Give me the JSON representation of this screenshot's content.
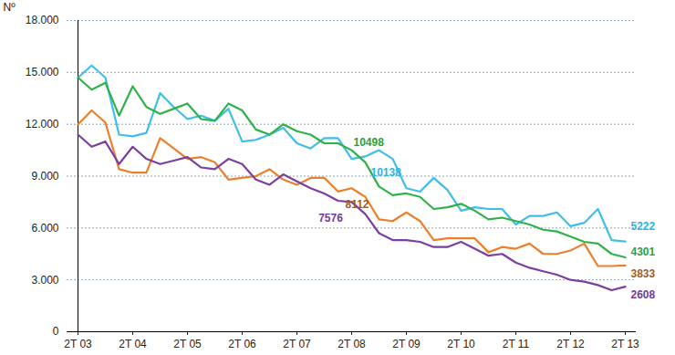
{
  "chart_data": {
    "type": "line",
    "ylabel": "Nº",
    "categories": [
      "2T 03",
      null,
      null,
      null,
      "2T 04",
      null,
      null,
      null,
      "2T 05",
      null,
      null,
      null,
      "2T 06",
      null,
      null,
      null,
      "2T 07",
      null,
      null,
      null,
      "2T 08",
      null,
      null,
      null,
      "2T 09",
      null,
      null,
      null,
      "2T 10",
      null,
      null,
      null,
      "2T 11",
      null,
      null,
      null,
      "2T 12",
      null,
      null,
      null,
      "2T 13"
    ],
    "series": [
      {
        "color": "#3ebfea",
        "values": [
          14700,
          15400,
          14700,
          11400,
          11300,
          11500,
          13800,
          13000,
          12300,
          12500,
          12200,
          12900,
          11000,
          11100,
          11400,
          11800,
          10900,
          10600,
          11200,
          11200,
          10000,
          10138,
          10500,
          10000,
          8300,
          8100,
          8900,
          8200,
          7000,
          7200,
          7100,
          7100,
          6200,
          6700,
          6700,
          6900,
          6100,
          6300,
          7100,
          5300,
          5222
        ]
      },
      {
        "color": "#2fb24a",
        "values": [
          14700,
          14000,
          14400,
          12500,
          14200,
          13000,
          12600,
          12900,
          13200,
          12300,
          12200,
          13200,
          12800,
          11700,
          11400,
          12000,
          11600,
          11400,
          10900,
          10900,
          10498,
          9800,
          8400,
          7900,
          8000,
          7800,
          7100,
          7200,
          7400,
          7000,
          6500,
          6600,
          6400,
          6200,
          5900,
          5800,
          5500,
          5200,
          5100,
          4500,
          4301
        ]
      },
      {
        "color": "#ec7f2c",
        "values": [
          12000,
          12800,
          12100,
          9400,
          9200,
          9200,
          11200,
          10600,
          10000,
          10100,
          9800,
          8800,
          8900,
          9000,
          9400,
          8800,
          8500,
          8900,
          8900,
          8112,
          8300,
          7800,
          6500,
          6400,
          6900,
          6400,
          5300,
          5400,
          5400,
          5400,
          4600,
          4900,
          4800,
          5100,
          4500,
          4500,
          4700,
          5100,
          3800,
          3800,
          3833
        ]
      },
      {
        "color": "#7b3f9f",
        "values": [
          11400,
          10700,
          11000,
          9700,
          10700,
          10000,
          9700,
          9900,
          10100,
          9500,
          9400,
          10000,
          9700,
          8800,
          8500,
          9100,
          8700,
          8300,
          8000,
          7576,
          7500,
          6800,
          5700,
          5300,
          5300,
          5200,
          4900,
          4900,
          5200,
          4800,
          4400,
          4500,
          4000,
          3700,
          3500,
          3300,
          3000,
          2900,
          2700,
          2400,
          2608
        ]
      }
    ],
    "annotations": [
      {
        "text": "10498",
        "x": 20,
        "y": 10498,
        "color": "#2e9e3e"
      },
      {
        "text": "10138",
        "x": 21,
        "y": 10138,
        "color": "#29b4e4"
      },
      {
        "text": "8112",
        "x": 19,
        "y": 8112,
        "color": "#9c5f2a"
      },
      {
        "text": "7576",
        "x": 19,
        "y": 7576,
        "color": "#6f3d9a"
      },
      {
        "text": "5222",
        "x": 40,
        "y": 5222,
        "color": "#29b4e4"
      },
      {
        "text": "4301",
        "x": 40,
        "y": 4301,
        "color": "#2e9e3e"
      },
      {
        "text": "3833",
        "x": 40,
        "y": 3833,
        "color": "#9c5f2a"
      },
      {
        "text": "2608",
        "x": 40,
        "y": 2608,
        "color": "#6f3d9a"
      }
    ],
    "ylim": [
      0,
      18000
    ],
    "yticks": [
      0,
      {
        "value": 3000,
        "label": "3.000"
      },
      {
        "value": 6000,
        "label": "6.000"
      },
      {
        "value": 9000,
        "label": "9.000"
      },
      {
        "value": 12000,
        "label": "12.000"
      },
      {
        "value": 15000,
        "label": "15.000"
      },
      {
        "value": 18000,
        "label": "18.000"
      }
    ],
    "grid": true
  }
}
